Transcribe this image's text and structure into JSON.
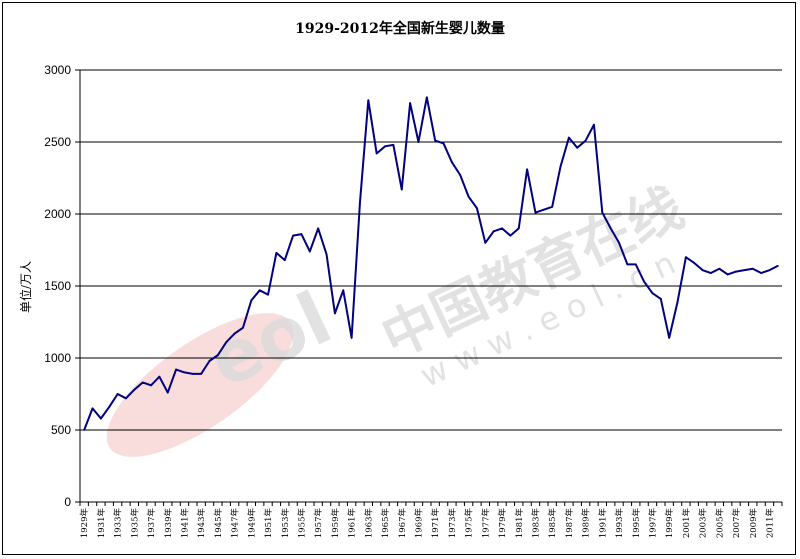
{
  "chart_data": {
    "type": "line",
    "title": "1929-2012年全国新生婴儿数量",
    "ylabel": "单位/万人",
    "xlabel": "",
    "ylim": [
      0,
      3000
    ],
    "yticks": [
      0,
      500,
      1000,
      1500,
      2000,
      2500,
      3000
    ],
    "grid": "horizontal",
    "line_color": "#000080",
    "x_tick_labels": [
      "1929年",
      "1931年",
      "1933年",
      "1935年",
      "1937年",
      "1939年",
      "1941年",
      "1943年",
      "1945年",
      "1947年",
      "1949年",
      "1951年",
      "1953年",
      "1955年",
      "1957年",
      "1959年",
      "1961年",
      "1963年",
      "1965年",
      "1967年",
      "1969年",
      "1971年",
      "1973年",
      "1975年",
      "1977年",
      "1979年",
      "1981年",
      "1983年",
      "1985年",
      "1987年",
      "1989年",
      "1991年",
      "1993年",
      "1995年",
      "1997年",
      "1999年",
      "2001年",
      "2003年",
      "2005年",
      "2007年",
      "2009年",
      "2011年"
    ],
    "x": [
      1929,
      1930,
      1931,
      1932,
      1933,
      1934,
      1935,
      1936,
      1937,
      1938,
      1939,
      1940,
      1941,
      1942,
      1943,
      1944,
      1945,
      1946,
      1947,
      1948,
      1949,
      1950,
      1951,
      1952,
      1953,
      1954,
      1955,
      1956,
      1957,
      1958,
      1959,
      1960,
      1961,
      1962,
      1963,
      1964,
      1965,
      1966,
      1967,
      1968,
      1969,
      1970,
      1971,
      1972,
      1973,
      1974,
      1975,
      1976,
      1977,
      1978,
      1979,
      1980,
      1981,
      1982,
      1983,
      1984,
      1985,
      1986,
      1987,
      1988,
      1989,
      1990,
      1991,
      1992,
      1993,
      1994,
      1995,
      1996,
      1997,
      1998,
      1999,
      2000,
      2001,
      2002,
      2003,
      2004,
      2005,
      2006,
      2007,
      2008,
      2009,
      2010,
      2011,
      2012
    ],
    "series": [
      {
        "values": [
          500,
          650,
          580,
          660,
          750,
          720,
          780,
          830,
          810,
          870,
          760,
          920,
          900,
          890,
          890,
          980,
          1020,
          1110,
          1170,
          1210,
          1400,
          1470,
          1440,
          1730,
          1680,
          1850,
          1860,
          1740,
          1900,
          1720,
          1310,
          1470,
          1140,
          2080,
          2790,
          2420,
          2470,
          2480,
          2170,
          2770,
          2500,
          2810,
          2510,
          2490,
          2360,
          2270,
          2120,
          2040,
          1800,
          1880,
          1900,
          1850,
          1900,
          2310,
          2010,
          2030,
          2050,
          2330,
          2530,
          2460,
          2510,
          2620,
          2010,
          1900,
          1800,
          1650,
          1650,
          1530,
          1450,
          1410,
          1140,
          1390,
          1700,
          1660,
          1610,
          1590,
          1620,
          1580,
          1600,
          1610,
          1620,
          1590,
          1610,
          1640
        ]
      }
    ]
  },
  "watermark": {
    "logo_text": "eol",
    "brand_text": "中国教育在线",
    "url_text": "w w w . e o l . c n"
  }
}
